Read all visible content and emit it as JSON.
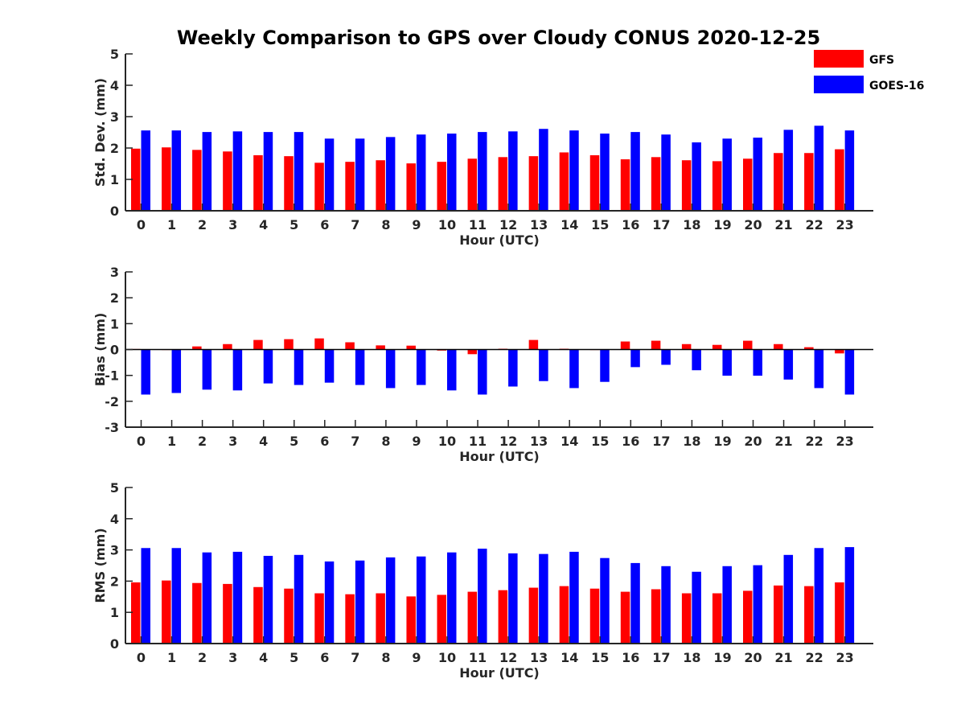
{
  "title": "Weekly Comparison to GPS over Cloudy CONUS 2020-12-25",
  "legend": {
    "placement": "top-right",
    "entries": [
      {
        "name": "GFS",
        "color": "#ff0000"
      },
      {
        "name": "GOES-16",
        "color": "#0000ff"
      }
    ]
  },
  "chart_data": [
    {
      "type": "bar",
      "xlabel": "Hour (UTC)",
      "ylabel": "Std. Dev. (mm)",
      "ylim": [
        0,
        5
      ],
      "yticks": [
        0,
        1,
        2,
        3,
        4,
        5
      ],
      "grid": false,
      "categories": [
        "0",
        "1",
        "2",
        "3",
        "4",
        "5",
        "6",
        "7",
        "8",
        "9",
        "10",
        "11",
        "12",
        "13",
        "14",
        "15",
        "16",
        "17",
        "18",
        "19",
        "20",
        "21",
        "22",
        "23"
      ],
      "series": [
        {
          "name": "GFS",
          "color": "#ff0000",
          "values": [
            1.98,
            2.02,
            1.94,
            1.89,
            1.77,
            1.74,
            1.53,
            1.56,
            1.61,
            1.51,
            1.56,
            1.66,
            1.71,
            1.74,
            1.86,
            1.77,
            1.64,
            1.71,
            1.61,
            1.58,
            1.66,
            1.84,
            1.84,
            1.96
          ]
        },
        {
          "name": "GOES-16",
          "color": "#0000ff",
          "values": [
            2.56,
            2.56,
            2.51,
            2.53,
            2.51,
            2.51,
            2.3,
            2.3,
            2.35,
            2.43,
            2.46,
            2.51,
            2.53,
            2.61,
            2.56,
            2.46,
            2.51,
            2.43,
            2.18,
            2.3,
            2.33,
            2.58,
            2.71,
            2.56
          ]
        }
      ]
    },
    {
      "type": "bar",
      "xlabel": "Hour (UTC)",
      "ylabel": "Bias (mm)",
      "ylim": [
        -3,
        3
      ],
      "yticks": [
        -3,
        -2,
        -1,
        0,
        1,
        2,
        3
      ],
      "grid": false,
      "zero_line": true,
      "categories": [
        "0",
        "1",
        "2",
        "3",
        "4",
        "5",
        "6",
        "7",
        "8",
        "9",
        "10",
        "11",
        "12",
        "13",
        "14",
        "15",
        "16",
        "17",
        "18",
        "19",
        "20",
        "21",
        "22",
        "23"
      ],
      "series": [
        {
          "name": "GFS",
          "color": "#ff0000",
          "values": [
            0.02,
            0.0,
            0.12,
            0.21,
            0.37,
            0.4,
            0.43,
            0.28,
            0.16,
            0.15,
            -0.04,
            -0.18,
            0.03,
            0.37,
            0.03,
            0.0,
            0.31,
            0.34,
            0.21,
            0.18,
            0.34,
            0.21,
            0.09,
            -0.15
          ]
        },
        {
          "name": "GOES-16",
          "color": "#0000ff",
          "values": [
            -1.74,
            -1.68,
            -1.55,
            -1.58,
            -1.31,
            -1.37,
            -1.28,
            -1.37,
            -1.49,
            -1.37,
            -1.58,
            -1.74,
            -1.43,
            -1.22,
            -1.49,
            -1.25,
            -0.68,
            -0.59,
            -0.8,
            -1.01,
            -1.01,
            -1.16,
            -1.49,
            -1.74
          ]
        }
      ]
    },
    {
      "type": "bar",
      "xlabel": "Hour (UTC)",
      "ylabel": "RMS (mm)",
      "ylim": [
        0,
        5
      ],
      "yticks": [
        0,
        1,
        2,
        3,
        4,
        5
      ],
      "grid": false,
      "categories": [
        "0",
        "1",
        "2",
        "3",
        "4",
        "5",
        "6",
        "7",
        "8",
        "9",
        "10",
        "11",
        "12",
        "13",
        "14",
        "15",
        "16",
        "17",
        "18",
        "19",
        "20",
        "21",
        "22",
        "23"
      ],
      "series": [
        {
          "name": "GFS",
          "color": "#ff0000",
          "values": [
            1.96,
            2.02,
            1.94,
            1.91,
            1.81,
            1.76,
            1.61,
            1.58,
            1.61,
            1.51,
            1.56,
            1.66,
            1.71,
            1.79,
            1.84,
            1.76,
            1.66,
            1.74,
            1.61,
            1.61,
            1.69,
            1.86,
            1.84,
            1.96
          ]
        },
        {
          "name": "GOES-16",
          "color": "#0000ff",
          "values": [
            3.06,
            3.06,
            2.92,
            2.94,
            2.81,
            2.84,
            2.63,
            2.66,
            2.76,
            2.79,
            2.92,
            3.04,
            2.89,
            2.87,
            2.94,
            2.74,
            2.58,
            2.48,
            2.3,
            2.48,
            2.51,
            2.84,
            3.06,
            3.09
          ]
        }
      ]
    }
  ]
}
